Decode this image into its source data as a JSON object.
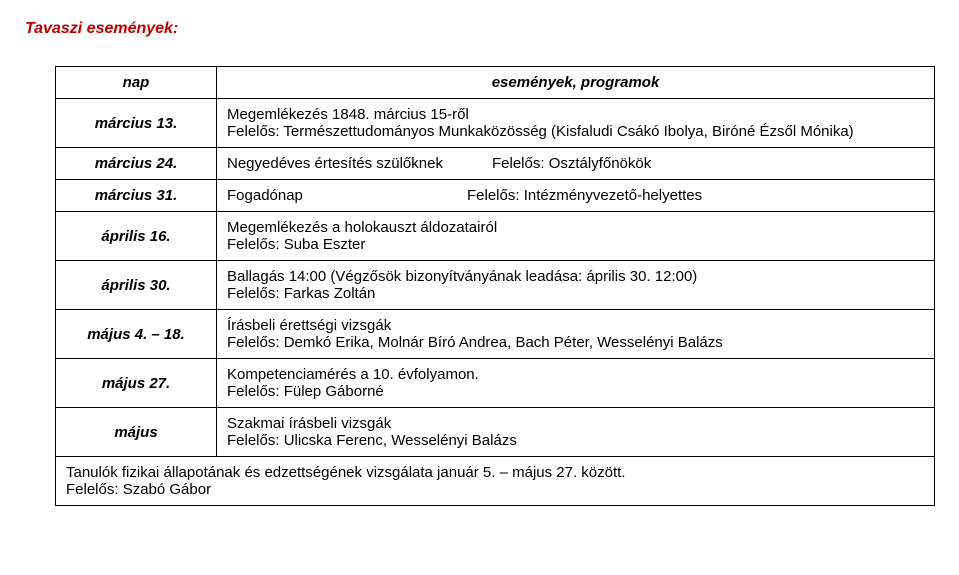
{
  "title": "Tavaszi események:",
  "headers": {
    "day": "nap",
    "program": "események, programok"
  },
  "rows": [
    {
      "day": "március 13.",
      "line1": "Megemlékezés 1848. március 15-ről",
      "line2": "Felelős: Természettudományos Munkaközösség (Kisfaludi Csákó Ibolya, Biróné Ézsől Mónika)"
    },
    {
      "day": "március 24.",
      "col1": "Negyedéves értesítés szülőknek",
      "col2": "Felelős: Osztályfőnökök"
    },
    {
      "day": "március 31.",
      "col1": "Fogadónap",
      "col2": "Felelős: Intézményvezető-helyettes"
    },
    {
      "day": "április 16.",
      "line1": "Megemlékezés a holokauszt áldozatairól",
      "line2": "Felelős: Suba Eszter"
    },
    {
      "day": "április 30.",
      "line1": "Ballagás 14:00 (Végzősök bizonyítványának leadása: április 30. 12:00)",
      "line2": "Felelős: Farkas Zoltán"
    },
    {
      "day": "május 4. – 18.",
      "line1": "Írásbeli érettségi vizsgák",
      "line2": "Felelős: Demkó Erika, Molnár Bíró Andrea, Bach Péter, Wesselényi Balázs"
    },
    {
      "day": "május 27.",
      "line1": "Kompetenciamérés a 10. évfolyamon.",
      "line2": "Felelős: Fülep Gáborné"
    },
    {
      "day": "május",
      "line1": "Szakmai írásbeli vizsgák",
      "line2": "Felelős: Ulicska Ferenc, Wesselényi Balázs"
    }
  ],
  "footer": {
    "line1": "Tanulók fizikai állapotának és edzettségének vizsgálata január 5. – május 27. között.",
    "line2": "Felelős: Szabó Gábor"
  }
}
